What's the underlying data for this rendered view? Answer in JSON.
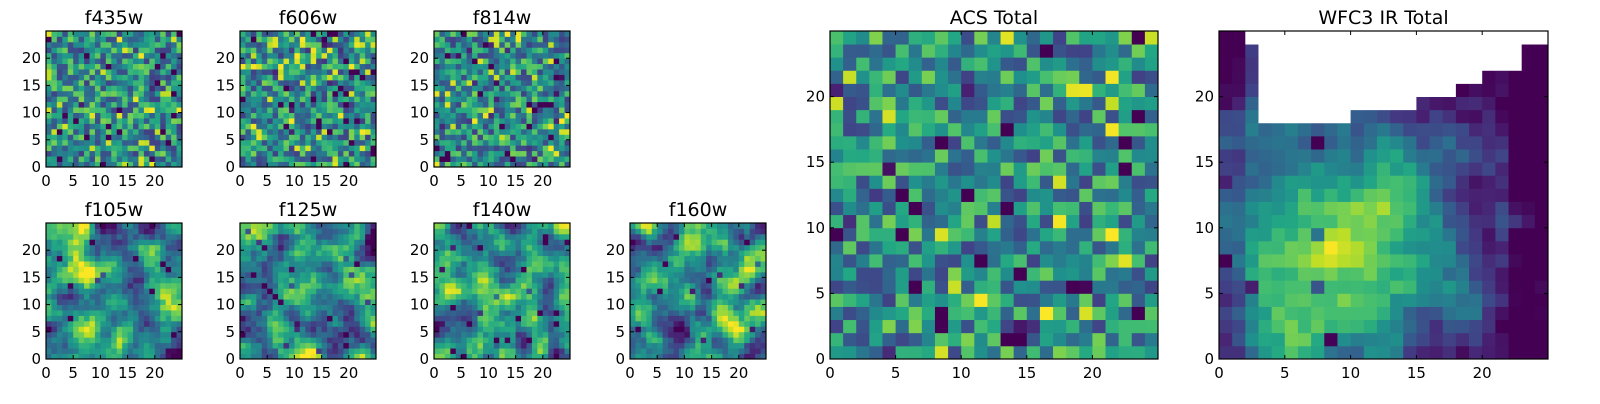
{
  "figure": {
    "colormap": "viridis",
    "grid_size": 25,
    "missing_color": "#ffffff"
  },
  "chart_data": [
    {
      "type": "heatmap",
      "title": "f435w",
      "xticks": [
        0,
        5,
        10,
        15,
        20
      ],
      "yticks": [
        0,
        5,
        10,
        15,
        20
      ],
      "xlim": [
        0,
        25
      ],
      "ylim": [
        0,
        25
      ],
      "pattern": "noise",
      "seed": 11,
      "grid": false
    },
    {
      "type": "heatmap",
      "title": "f606w",
      "xticks": [
        0,
        5,
        10,
        15,
        20
      ],
      "yticks": [
        0,
        5,
        10,
        15,
        20
      ],
      "xlim": [
        0,
        25
      ],
      "ylim": [
        0,
        25
      ],
      "pattern": "noise",
      "seed": 23,
      "grid": false
    },
    {
      "type": "heatmap",
      "title": "f814w",
      "xticks": [
        0,
        5,
        10,
        15,
        20
      ],
      "yticks": [
        0,
        5,
        10,
        15,
        20
      ],
      "xlim": [
        0,
        25
      ],
      "ylim": [
        0,
        25
      ],
      "pattern": "noise",
      "seed": 37,
      "grid": false
    },
    {
      "type": "heatmap",
      "title": "f105w",
      "xticks": [
        0,
        5,
        10,
        15,
        20
      ],
      "yticks": [
        0,
        5,
        10,
        15,
        20
      ],
      "xlim": [
        0,
        25
      ],
      "ylim": [
        0,
        25
      ],
      "pattern": "smooth",
      "seed": 41,
      "grid": false
    },
    {
      "type": "heatmap",
      "title": "f125w",
      "xticks": [
        0,
        5,
        10,
        15,
        20
      ],
      "yticks": [
        0,
        5,
        10,
        15,
        20
      ],
      "xlim": [
        0,
        25
      ],
      "ylim": [
        0,
        25
      ],
      "pattern": "smooth",
      "seed": 53,
      "grid": false
    },
    {
      "type": "heatmap",
      "title": "f140w",
      "xticks": [
        0,
        5,
        10,
        15,
        20
      ],
      "yticks": [
        0,
        5,
        10,
        15,
        20
      ],
      "xlim": [
        0,
        25
      ],
      "ylim": [
        0,
        25
      ],
      "pattern": "smooth",
      "seed": 67,
      "grid": false
    },
    {
      "type": "heatmap",
      "title": "f160w",
      "xticks": [
        0,
        5,
        10,
        15,
        20
      ],
      "yticks": [
        0,
        5,
        10,
        15,
        20
      ],
      "xlim": [
        0,
        25
      ],
      "ylim": [
        0,
        25
      ],
      "pattern": "smooth",
      "seed": 79,
      "grid": false
    },
    {
      "type": "heatmap",
      "title": "ACS Total",
      "xticks": [
        0,
        5,
        10,
        15,
        20
      ],
      "yticks": [
        0,
        5,
        10,
        15,
        20
      ],
      "xlim": [
        0,
        25
      ],
      "ylim": [
        0,
        25
      ],
      "pattern": "noise",
      "seed": 97,
      "grid": false
    },
    {
      "type": "heatmap",
      "title": "WFC3 IR Total",
      "xticks": [
        0,
        5,
        10,
        15,
        20
      ],
      "yticks": [
        0,
        5,
        10,
        15,
        20
      ],
      "xlim": [
        0,
        25
      ],
      "ylim": [
        0,
        25
      ],
      "pattern": "gradient",
      "seed": 101,
      "grid": false,
      "masked_region_top_profile": [
        {
          "x": 0,
          "y_top": 25
        },
        {
          "x": 1,
          "y_top": 25
        },
        {
          "x": 2,
          "y_top": 24
        },
        {
          "x": 3,
          "y_top": 18
        },
        {
          "x": 4,
          "y_top": 18
        },
        {
          "x": 5,
          "y_top": 18
        },
        {
          "x": 6,
          "y_top": 18
        },
        {
          "x": 7,
          "y_top": 18
        },
        {
          "x": 8,
          "y_top": 18
        },
        {
          "x": 9,
          "y_top": 18
        },
        {
          "x": 10,
          "y_top": 19
        },
        {
          "x": 11,
          "y_top": 19
        },
        {
          "x": 12,
          "y_top": 19
        },
        {
          "x": 13,
          "y_top": 19
        },
        {
          "x": 14,
          "y_top": 19
        },
        {
          "x": 15,
          "y_top": 20
        },
        {
          "x": 16,
          "y_top": 20
        },
        {
          "x": 17,
          "y_top": 20
        },
        {
          "x": 18,
          "y_top": 21
        },
        {
          "x": 19,
          "y_top": 21
        },
        {
          "x": 20,
          "y_top": 22
        },
        {
          "x": 21,
          "y_top": 22
        },
        {
          "x": 22,
          "y_top": 22
        },
        {
          "x": 23,
          "y_top": 24
        },
        {
          "x": 24,
          "y_top": 24
        }
      ]
    }
  ]
}
